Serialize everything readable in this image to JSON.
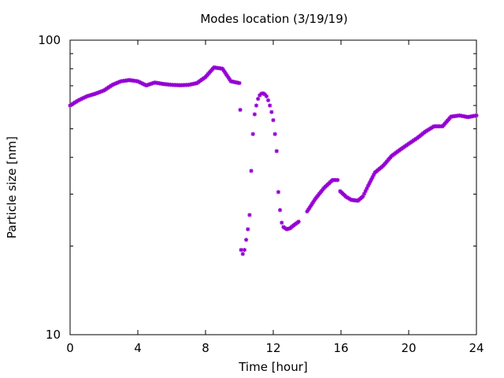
{
  "chart_data": {
    "type": "scatter",
    "title": "Modes location (3/19/19)",
    "xlabel": "Time [hour]",
    "ylabel": "Particle size [nm]",
    "xlim": [
      0,
      24
    ],
    "ylim": [
      10,
      100
    ],
    "yscale": "log",
    "grid": false,
    "legend": "none",
    "marker": "asterisk",
    "color": "#9400d3",
    "x_ticks": [
      "0",
      "4",
      "8",
      "12",
      "16",
      "20",
      "24"
    ],
    "y_ticks": [
      "10",
      "100"
    ],
    "series": [
      {
        "x": [
          0,
          0.5,
          1,
          1.5,
          2,
          2.5,
          3,
          3.5,
          4,
          4.5,
          5,
          5.5,
          6,
          6.5,
          7,
          7.5,
          8,
          8.5,
          9,
          9.5,
          10
        ],
        "y": [
          60,
          62.5,
          64.5,
          65.8,
          67.5,
          70.5,
          72.5,
          73.2,
          72.5,
          70.2,
          71.8,
          71.0,
          70.5,
          70.3,
          70.5,
          71.5,
          75.0,
          80.8,
          80.0,
          72.5,
          71.5
        ]
      },
      {
        "x": [
          10.05,
          10.1,
          10.2,
          10.3,
          10.4,
          10.5,
          10.6,
          10.7,
          10.8,
          10.9,
          11,
          11.1,
          11.2,
          11.3,
          11.4,
          11.5,
          11.6,
          11.7,
          11.8,
          11.9,
          12,
          12.1,
          12.2,
          12.3,
          12.4,
          12.5,
          12.6,
          12.8,
          13,
          13.2,
          13.5
        ],
        "y": [
          58,
          19.4,
          18.8,
          19.4,
          21.0,
          22.8,
          25.5,
          36.0,
          48.0,
          56.0,
          60.0,
          63.2,
          65.0,
          65.8,
          66.0,
          65.5,
          64.5,
          62.5,
          60.0,
          57.0,
          53.5,
          48.0,
          42.0,
          30.5,
          26.5,
          24.0,
          23.2,
          22.8,
          23.0,
          23.5,
          24.2
        ]
      },
      {
        "x": [
          14,
          14.5,
          15,
          15.5,
          15.8
        ],
        "y": [
          26.2,
          29.0,
          31.5,
          33.5,
          33.5
        ]
      },
      {
        "x": [
          15.95,
          16.3,
          16.6,
          17,
          17.3,
          17.6,
          18,
          18.5,
          19,
          19.5,
          20,
          20.5,
          21,
          21.5,
          22,
          22.5,
          23,
          23.5,
          24
        ],
        "y": [
          30.7,
          29.4,
          28.7,
          28.5,
          29.5,
          32.0,
          35.5,
          37.5,
          40.5,
          42.5,
          44.5,
          46.5,
          49.0,
          51.0,
          51.0,
          55.0,
          55.5,
          54.8,
          55.5
        ]
      }
    ]
  }
}
